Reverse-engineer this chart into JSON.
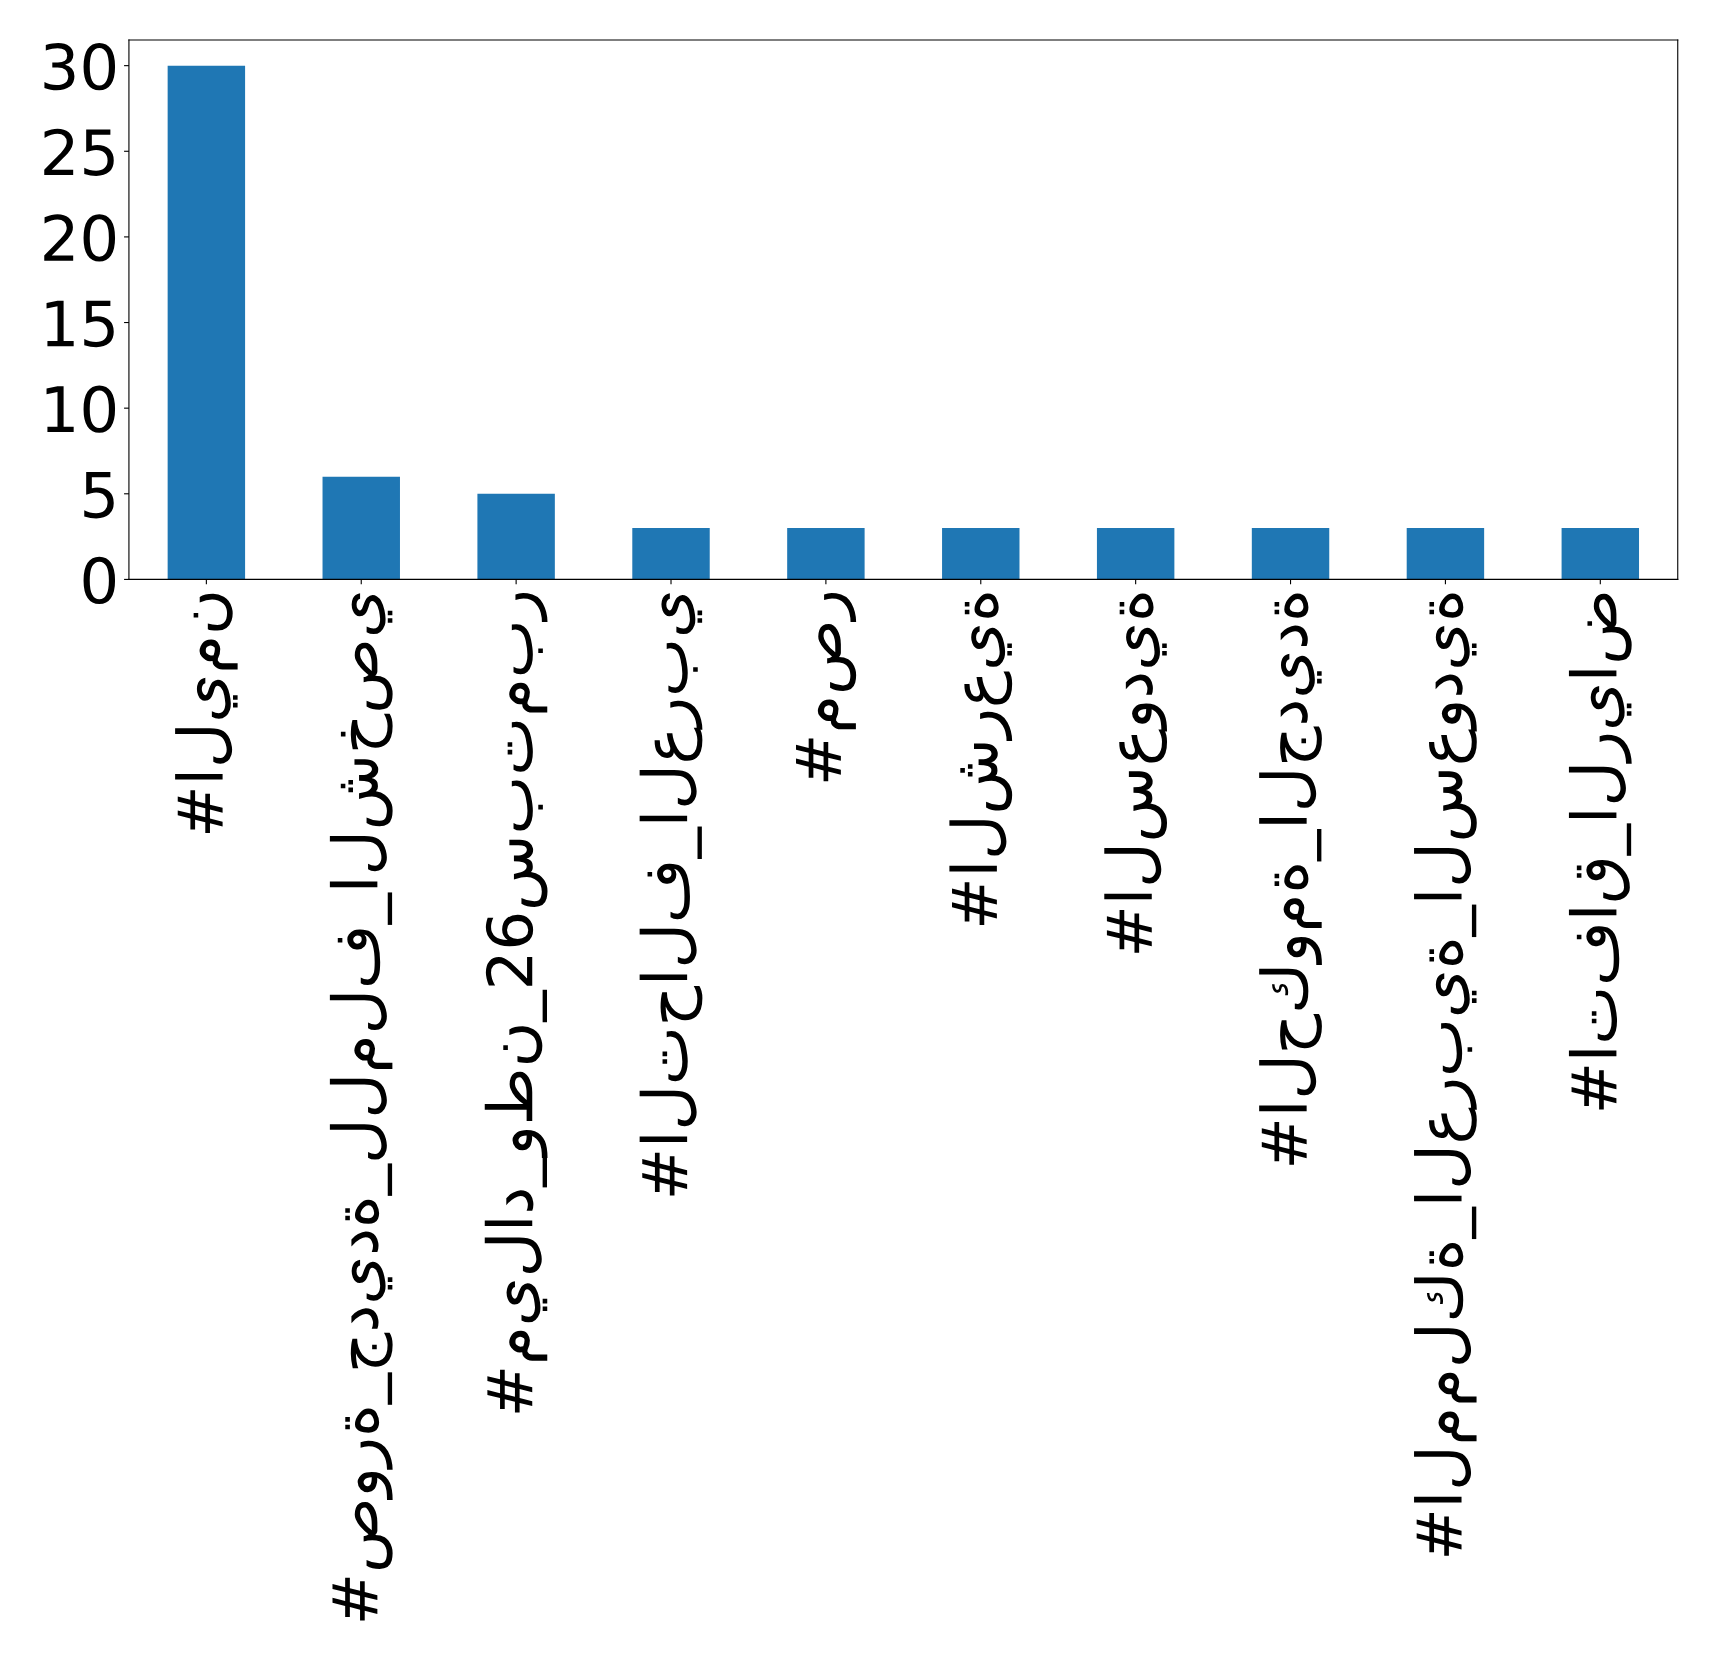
{
  "chart_data": {
    "type": "bar",
    "categories": [
      "#اليمن",
      "#صورة_جديدة_للملف_الشخصي",
      "#ميلاد_وطن_26سبتمبر",
      "#التحالف_العربي",
      "#مصر",
      "#الشرعية",
      "#السعودية",
      "#الحكومة_الجديدة",
      "#المملكة_العربية_السعودية",
      "#اتفاق_الرياض"
    ],
    "values": [
      30,
      6,
      5,
      3,
      3,
      3,
      3,
      3,
      3,
      3
    ],
    "color": "#1f77b4",
    "ylim": [
      0,
      31.5
    ],
    "yticks": [
      0,
      5,
      10,
      15,
      20,
      25,
      30
    ],
    "grid": false
  }
}
